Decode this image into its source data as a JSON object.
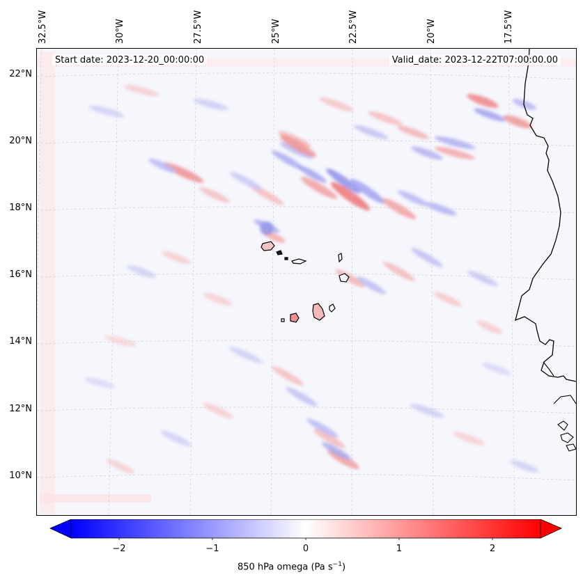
{
  "map": {
    "start_date": "Start date: 2023-12-20_00:00:00",
    "valid_date": "Valid_date: 2023-12-22T07:00:00.00",
    "lon_labels": [
      "32.5°W",
      "30°W",
      "27.5°W",
      "25°W",
      "22.5°W",
      "20°W",
      "17.5°W"
    ],
    "lat_labels": [
      "22°N",
      "20°N",
      "18°N",
      "16°N",
      "14°N",
      "12°N",
      "10°N"
    ],
    "features": [
      "Cape Verde islands",
      "West African coastline"
    ],
    "field": "850 hPa omega"
  },
  "colorbar": {
    "ticks": [
      "−2",
      "−1",
      "0",
      "1",
      "2"
    ],
    "label": "850 hPa omega (Pa s",
    "label_sup": "−1",
    "label_end": ")",
    "colors": {
      "negative": "#0000ff",
      "zero": "#ffffff",
      "positive": "#ff0000"
    }
  }
}
